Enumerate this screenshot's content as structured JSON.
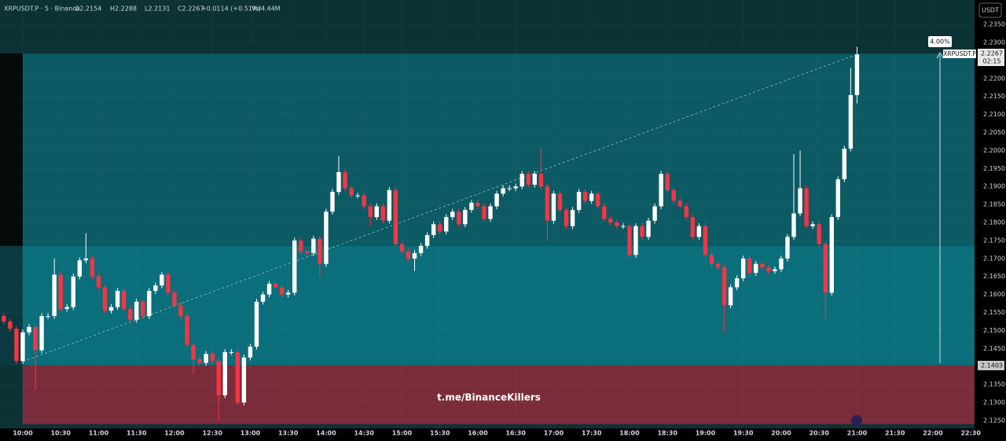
{
  "header": {
    "symbol": "XRPUSDT.P · 5 · Binance",
    "open": "O2.2154",
    "high": "H2.2288",
    "low": "L2.2131",
    "close": "C2.2267",
    "change": "+0.0114 (+0.51%)",
    "volume": "Vol4.44M",
    "currency": "USDT"
  },
  "watermark": "t.me/BinanceKillers",
  "price_label": {
    "symbol": "XRPUSDT.P",
    "price": "2.2267",
    "countdown": "02:15"
  },
  "level_label": "2.1403",
  "measure_label": "4.00%",
  "chart_data": {
    "type": "candlestick",
    "xlim": [
      582,
      1353
    ],
    "ylim": [
      2.1228,
      2.2418
    ],
    "up_color": "#ffffff",
    "down_color": "#f23645",
    "zones": [
      {
        "x0": 600,
        "top": 2.2269,
        "bottom": 2.1735,
        "color": "#0b5a64"
      },
      {
        "x0": 600,
        "top": 2.1735,
        "bottom": 2.1403,
        "color": "#0a6e7b"
      },
      {
        "x0": 600,
        "top": 2.1403,
        "bottom": 2.124,
        "color": "#7a2c3a"
      }
    ],
    "yticks": [
      {
        "value": 2.235,
        "label": "2.2350"
      },
      {
        "value": 2.23,
        "label": "2.2300"
      },
      {
        "value": 2.22,
        "label": "2.2200"
      },
      {
        "value": 2.215,
        "label": "2.2150"
      },
      {
        "value": 2.21,
        "label": "2.2100"
      },
      {
        "value": 2.205,
        "label": "2.2050"
      },
      {
        "value": 2.2,
        "label": "2.2000"
      },
      {
        "value": 2.195,
        "label": "2.1950"
      },
      {
        "value": 2.19,
        "label": "2.1900"
      },
      {
        "value": 2.185,
        "label": "2.1850"
      },
      {
        "value": 2.18,
        "label": "2.1800"
      },
      {
        "value": 2.175,
        "label": "2.1750"
      },
      {
        "value": 2.17,
        "label": "2.1700"
      },
      {
        "value": 2.165,
        "label": "2.1650"
      },
      {
        "value": 2.16,
        "label": "2.1600"
      },
      {
        "value": 2.155,
        "label": "2.1550"
      },
      {
        "value": 2.15,
        "label": "2.1500"
      },
      {
        "value": 2.145,
        "label": "2.1450"
      },
      {
        "value": 2.135,
        "label": "2.1350"
      },
      {
        "value": 2.13,
        "label": "2.1300"
      },
      {
        "value": 2.125,
        "label": "2.1250"
      }
    ],
    "xticks": [
      {
        "value": 600,
        "label": "10:00"
      },
      {
        "value": 630,
        "label": "10:30"
      },
      {
        "value": 660,
        "label": "11:00"
      },
      {
        "value": 690,
        "label": "11:30"
      },
      {
        "value": 720,
        "label": "12:00"
      },
      {
        "value": 750,
        "label": "12:30"
      },
      {
        "value": 780,
        "label": "13:00"
      },
      {
        "value": 810,
        "label": "13:30"
      },
      {
        "value": 840,
        "label": "14:00"
      },
      {
        "value": 870,
        "label": "14:30"
      },
      {
        "value": 900,
        "label": "15:00"
      },
      {
        "value": 930,
        "label": "15:30"
      },
      {
        "value": 960,
        "label": "16:00"
      },
      {
        "value": 990,
        "label": "16:30"
      },
      {
        "value": 1020,
        "label": "17:00"
      },
      {
        "value": 1050,
        "label": "17:30"
      },
      {
        "value": 1080,
        "label": "18:00"
      },
      {
        "value": 1110,
        "label": "18:30"
      },
      {
        "value": 1140,
        "label": "19:00"
      },
      {
        "value": 1170,
        "label": "19:30"
      },
      {
        "value": 1200,
        "label": "20:00"
      },
      {
        "value": 1230,
        "label": "20:30"
      },
      {
        "value": 1260,
        "label": "21:00"
      },
      {
        "value": 1290,
        "label": "21:30"
      },
      {
        "value": 1320,
        "label": "22:00"
      },
      {
        "value": 1350,
        "label": "22:30"
      }
    ],
    "x": [
      585,
      590,
      595,
      600,
      605,
      610,
      615,
      620,
      625,
      630,
      635,
      640,
      645,
      650,
      655,
      660,
      665,
      670,
      675,
      680,
      685,
      690,
      695,
      700,
      705,
      710,
      715,
      720,
      725,
      730,
      735,
      740,
      745,
      750,
      755,
      760,
      765,
      770,
      775,
      780,
      785,
      790,
      795,
      800,
      805,
      810,
      815,
      820,
      825,
      830,
      835,
      840,
      845,
      850,
      855,
      860,
      865,
      870,
      875,
      880,
      885,
      890,
      895,
      900,
      905,
      910,
      915,
      920,
      925,
      930,
      935,
      940,
      945,
      950,
      955,
      960,
      965,
      970,
      975,
      980,
      985,
      990,
      995,
      1000,
      1005,
      1010,
      1015,
      1020,
      1025,
      1030,
      1035,
      1040,
      1045,
      1050,
      1055,
      1060,
      1065,
      1070,
      1075,
      1080,
      1085,
      1090,
      1095,
      1100,
      1105,
      1110,
      1115,
      1120,
      1125,
      1130,
      1135,
      1140,
      1145,
      1150,
      1155,
      1160,
      1165,
      1170,
      1175,
      1180,
      1185,
      1190,
      1195,
      1200,
      1205,
      1210,
      1215,
      1220,
      1225,
      1230,
      1235,
      1240,
      1245,
      1250,
      1255,
      1260
    ],
    "ohlc": [
      [
        2.154,
        2.1548,
        2.1517,
        2.1525
      ],
      [
        2.1525,
        2.1533,
        2.1497,
        2.1505
      ],
      [
        2.1505,
        2.1513,
        2.1407,
        2.1415
      ],
      [
        2.1415,
        2.1503,
        2.1407,
        2.1495
      ],
      [
        2.1495,
        2.1518,
        2.1487,
        2.151
      ],
      [
        2.151,
        2.1518,
        2.1335,
        2.1445
      ],
      [
        2.1445,
        2.1548,
        2.1437,
        2.154
      ],
      [
        2.154,
        2.1548,
        2.1532,
        2.154
      ],
      [
        2.154,
        2.17,
        2.1532,
        2.1655
      ],
      [
        2.1655,
        2.1663,
        2.1552,
        2.156
      ],
      [
        2.156,
        2.1573,
        2.1552,
        2.1565
      ],
      [
        2.1565,
        2.1658,
        2.1557,
        2.165
      ],
      [
        2.165,
        2.1703,
        2.1642,
        2.1695
      ],
      [
        2.1695,
        2.177,
        2.1687,
        2.17
      ],
      [
        2.17,
        2.1708,
        2.1642,
        2.165
      ],
      [
        2.165,
        2.1658,
        2.1612,
        2.162
      ],
      [
        2.162,
        2.1628,
        2.1547,
        2.1555
      ],
      [
        2.1555,
        2.1573,
        2.1547,
        2.1565
      ],
      [
        2.1565,
        2.1618,
        2.1557,
        2.161
      ],
      [
        2.161,
        2.1618,
        2.1552,
        2.156
      ],
      [
        2.156,
        2.1568,
        2.1522,
        2.153
      ],
      [
        2.153,
        2.1588,
        2.1522,
        2.158
      ],
      [
        2.158,
        2.1588,
        2.1532,
        2.154
      ],
      [
        2.154,
        2.1618,
        2.1532,
        2.161
      ],
      [
        2.161,
        2.1633,
        2.1602,
        2.1625
      ],
      [
        2.1625,
        2.1663,
        2.1617,
        2.1655
      ],
      [
        2.1655,
        2.1663,
        2.1597,
        2.1605
      ],
      [
        2.1605,
        2.1613,
        2.1562,
        2.157
      ],
      [
        2.157,
        2.1578,
        2.1532,
        2.154
      ],
      [
        2.154,
        2.1548,
        2.1452,
        2.146
      ],
      [
        2.146,
        2.1468,
        2.138,
        2.142
      ],
      [
        2.142,
        2.1428,
        2.1402,
        2.141
      ],
      [
        2.141,
        2.1443,
        2.1402,
        2.1435
      ],
      [
        2.1435,
        2.1443,
        2.1407,
        2.1415
      ],
      [
        2.1415,
        2.1423,
        2.125,
        2.132
      ],
      [
        2.132,
        2.1448,
        2.1312,
        2.144
      ],
      [
        2.144,
        2.1448,
        2.1432,
        2.144
      ],
      [
        2.144,
        2.1448,
        2.1292,
        2.13
      ],
      [
        2.13,
        2.1433,
        2.1292,
        2.1425
      ],
      [
        2.1425,
        2.1463,
        2.1417,
        2.1455
      ],
      [
        2.1455,
        2.1588,
        2.1447,
        2.158
      ],
      [
        2.158,
        2.1608,
        2.1572,
        2.16
      ],
      [
        2.16,
        2.1638,
        2.1592,
        2.163
      ],
      [
        2.163,
        2.1638,
        2.1612,
        2.162
      ],
      [
        2.162,
        2.1628,
        2.1592,
        2.16
      ],
      [
        2.16,
        2.1613,
        2.1592,
        2.1605
      ],
      [
        2.1605,
        2.1758,
        2.1597,
        2.175
      ],
      [
        2.175,
        2.1758,
        2.1712,
        2.172
      ],
      [
        2.172,
        2.1723,
        2.1707,
        2.1715
      ],
      [
        2.1715,
        2.1763,
        2.1707,
        2.1755
      ],
      [
        2.1755,
        2.1763,
        2.165,
        2.1685
      ],
      [
        2.1685,
        2.1838,
        2.1677,
        2.183
      ],
      [
        2.183,
        2.1893,
        2.1822,
        2.1885
      ],
      [
        2.1885,
        2.1985,
        2.1877,
        2.194
      ],
      [
        2.194,
        2.1948,
        2.1887,
        2.1895
      ],
      [
        2.1895,
        2.1903,
        2.1867,
        2.1875
      ],
      [
        2.1875,
        2.1883,
        2.1867,
        2.1875
      ],
      [
        2.1875,
        2.1883,
        2.1837,
        2.1845
      ],
      [
        2.1845,
        2.1853,
        2.179,
        2.1815
      ],
      [
        2.1815,
        2.1853,
        2.1807,
        2.1845
      ],
      [
        2.1845,
        2.1853,
        2.1797,
        2.1805
      ],
      [
        2.1805,
        2.1898,
        2.1797,
        2.189
      ],
      [
        2.189,
        2.1898,
        2.1732,
        2.174
      ],
      [
        2.174,
        2.1748,
        2.1712,
        2.172
      ],
      [
        2.172,
        2.1728,
        2.1692,
        2.17
      ],
      [
        2.17,
        2.1723,
        2.1665,
        2.1715
      ],
      [
        2.1715,
        2.1743,
        2.1707,
        2.1735
      ],
      [
        2.1735,
        2.1773,
        2.1727,
        2.1765
      ],
      [
        2.1765,
        2.1803,
        2.1757,
        2.1795
      ],
      [
        2.1795,
        2.1803,
        2.1767,
        2.1775
      ],
      [
        2.1775,
        2.1823,
        2.1767,
        2.1815
      ],
      [
        2.1815,
        2.1838,
        2.1807,
        2.183
      ],
      [
        2.183,
        2.1838,
        2.1787,
        2.1795
      ],
      [
        2.1795,
        2.1843,
        2.1787,
        2.1835
      ],
      [
        2.1835,
        2.1863,
        2.1827,
        2.1855
      ],
      [
        2.1855,
        2.1863,
        2.1837,
        2.1845
      ],
      [
        2.1845,
        2.1853,
        2.1802,
        2.181
      ],
      [
        2.181,
        2.1853,
        2.1802,
        2.1845
      ],
      [
        2.1845,
        2.1888,
        2.1837,
        2.188
      ],
      [
        2.188,
        2.1903,
        2.1872,
        2.1895
      ],
      [
        2.1895,
        2.1903,
        2.1887,
        2.1895
      ],
      [
        2.1895,
        2.1908,
        2.1887,
        2.19
      ],
      [
        2.19,
        2.1943,
        2.1892,
        2.1935
      ],
      [
        2.1935,
        2.1943,
        2.1897,
        2.1905
      ],
      [
        2.1905,
        2.1943,
        2.1897,
        2.1935
      ],
      [
        2.1935,
        2.201,
        2.1892,
        2.19
      ],
      [
        2.19,
        2.1908,
        2.175,
        2.1805
      ],
      [
        2.1805,
        2.1888,
        2.1797,
        2.188
      ],
      [
        2.188,
        2.1888,
        2.1827,
        2.1835
      ],
      [
        2.1835,
        2.1843,
        2.1782,
        2.179
      ],
      [
        2.179,
        2.1843,
        2.1782,
        2.1835
      ],
      [
        2.1835,
        2.1893,
        2.1827,
        2.1885
      ],
      [
        2.1885,
        2.1893,
        2.1852,
        2.186
      ],
      [
        2.186,
        2.1888,
        2.1852,
        2.188
      ],
      [
        2.188,
        2.1888,
        2.1837,
        2.1845
      ],
      [
        2.1845,
        2.1853,
        2.1802,
        2.181
      ],
      [
        2.181,
        2.1818,
        2.1792,
        2.18
      ],
      [
        2.18,
        2.1808,
        2.1782,
        2.179
      ],
      [
        2.179,
        2.1798,
        2.1782,
        2.179
      ],
      [
        2.179,
        2.1798,
        2.1702,
        2.171
      ],
      [
        2.171,
        2.1798,
        2.1702,
        2.179
      ],
      [
        2.179,
        2.1798,
        2.1752,
        2.176
      ],
      [
        2.176,
        2.1813,
        2.1752,
        2.1805
      ],
      [
        2.1805,
        2.1853,
        2.1797,
        2.1845
      ],
      [
        2.1845,
        2.1943,
        2.1837,
        2.1935
      ],
      [
        2.1935,
        2.1943,
        2.1882,
        2.189
      ],
      [
        2.189,
        2.1898,
        2.1852,
        2.186
      ],
      [
        2.186,
        2.1868,
        2.1837,
        2.1845
      ],
      [
        2.1845,
        2.1853,
        2.1807,
        2.1815
      ],
      [
        2.1815,
        2.1823,
        2.1752,
        2.176
      ],
      [
        2.176,
        2.1798,
        2.1752,
        2.179
      ],
      [
        2.179,
        2.1798,
        2.1702,
        2.171
      ],
      [
        2.171,
        2.1718,
        2.1677,
        2.1685
      ],
      [
        2.1685,
        2.1693,
        2.1667,
        2.1675
      ],
      [
        2.1675,
        2.1683,
        2.1495,
        2.157
      ],
      [
        2.157,
        2.1628,
        2.1562,
        2.162
      ],
      [
        2.162,
        2.1653,
        2.1612,
        2.1645
      ],
      [
        2.1645,
        2.1708,
        2.1637,
        2.17
      ],
      [
        2.17,
        2.1708,
        2.1652,
        2.166
      ],
      [
        2.166,
        2.1693,
        2.1652,
        2.1685
      ],
      [
        2.1685,
        2.1693,
        2.1667,
        2.1675
      ],
      [
        2.1675,
        2.1683,
        2.1657,
        2.1665
      ],
      [
        2.1665,
        2.1678,
        2.1657,
        2.167
      ],
      [
        2.167,
        2.1708,
        2.1662,
        2.17
      ],
      [
        2.17,
        2.1768,
        2.1692,
        2.176
      ],
      [
        2.176,
        2.199,
        2.1752,
        2.1825
      ],
      [
        2.1825,
        2.2,
        2.1817,
        2.1895
      ],
      [
        2.1895,
        2.1903,
        2.1782,
        2.179
      ],
      [
        2.179,
        2.1803,
        2.1782,
        2.1795
      ],
      [
        2.1795,
        2.1803,
        2.1732,
        2.174
      ],
      [
        2.174,
        2.1748,
        2.153,
        2.1605
      ],
      [
        2.1605,
        2.1823,
        2.1597,
        2.1815
      ],
      [
        2.1815,
        2.1928,
        2.1807,
        2.192
      ],
      [
        2.192,
        2.2013,
        2.1912,
        2.2005
      ],
      [
        2.2005,
        2.223,
        2.1997,
        2.2154
      ],
      [
        2.2154,
        2.2288,
        2.2131,
        2.2267
      ]
    ]
  }
}
